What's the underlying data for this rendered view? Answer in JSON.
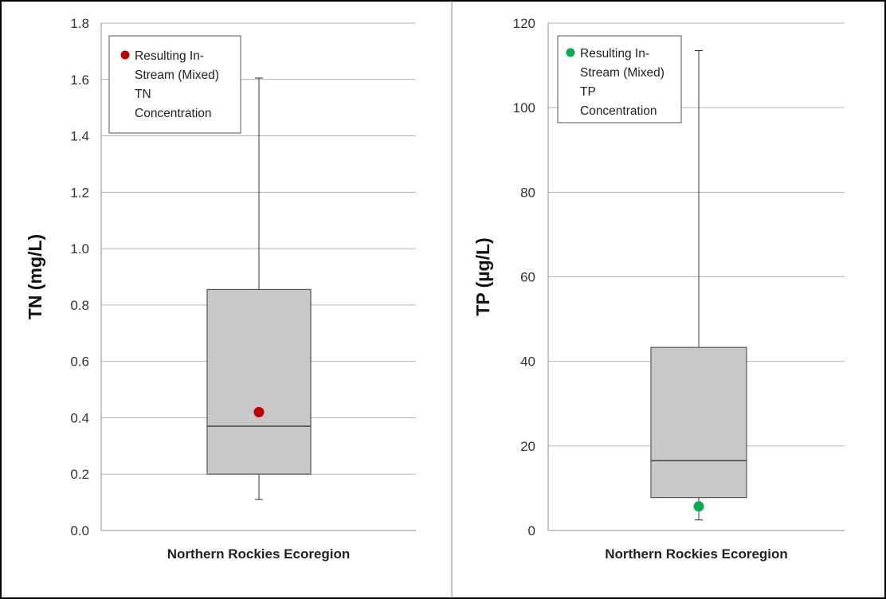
{
  "chart_data": [
    {
      "type": "box",
      "category": "Northern Rockies Ecoregion",
      "ylabel": "TN (mg/L)",
      "ylim": [
        0,
        1.8
      ],
      "y_ticks": [
        "0.0",
        "0.2",
        "0.4",
        "0.6",
        "0.8",
        "1.0",
        "1.2",
        "1.4",
        "1.6",
        "1.8"
      ],
      "grid": true,
      "box": {
        "min": 0.11,
        "q1": 0.2,
        "median": 0.37,
        "q3": 0.855,
        "max": 1.605
      },
      "point": {
        "name": "Resulting In-Stream (Mixed) TN Concentration",
        "value": 0.42,
        "color": "#c00000"
      },
      "legend": {
        "placement": "top-left",
        "lines": [
          "Resulting In-",
          "Stream (Mixed)",
          "TN",
          "Concentration"
        ]
      },
      "box_color": "#c8c8c8"
    },
    {
      "type": "box",
      "category": "Northern Rockies Ecoregion",
      "ylabel": "TP (µg/L)",
      "ylim": [
        0,
        120
      ],
      "y_ticks": [
        "0",
        "20",
        "40",
        "60",
        "80",
        "100",
        "120"
      ],
      "grid": true,
      "box": {
        "min": 2.5,
        "q1": 7.8,
        "median": 16.5,
        "q3": 43.3,
        "max": 113.5
      },
      "point": {
        "name": "Resulting In-Stream (Mixed) TP Concentration",
        "value": 5.7,
        "color": "#00b050"
      },
      "legend": {
        "placement": "top-left",
        "lines": [
          "Resulting In-",
          "Stream (Mixed)",
          "TP",
          "Concentration"
        ]
      },
      "box_color": "#c8c8c8"
    }
  ]
}
